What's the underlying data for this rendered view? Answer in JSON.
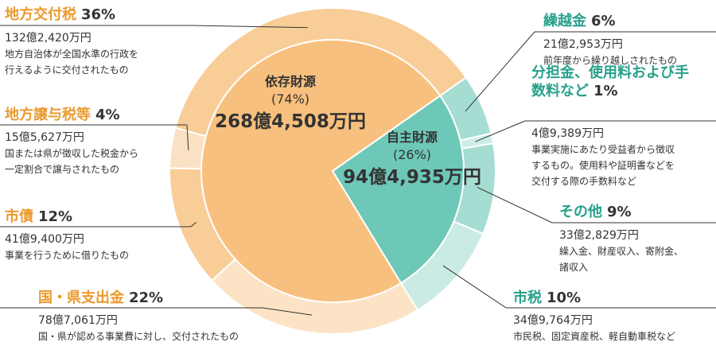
{
  "chart_data": {
    "type": "sunburst",
    "inner": {
      "categories": [
        "自主財源",
        "依存財源"
      ],
      "values": [
        26,
        74
      ],
      "value_labels": [
        "(26%)",
        "(74%)"
      ],
      "amounts": [
        "94億4,935万円",
        "268億4,508万円"
      ],
      "colors": [
        "#6ec8b7",
        "#f8c07e"
      ]
    },
    "outer": {
      "categories": [
        "繰越金",
        "分担金、使用料および手数料など",
        "その他",
        "市税",
        "国・県支出金",
        "市債",
        "地方譲与税等",
        "地方交付税"
      ],
      "values": [
        6,
        1,
        9,
        10,
        22,
        12,
        4,
        36
      ],
      "value_labels": [
        "6%",
        "1%",
        "9%",
        "10%",
        "22%",
        "12%",
        "4%",
        "36%"
      ],
      "amounts": [
        "21億2,953万円",
        "4億9,389万円",
        "33億2,829万円",
        "34億9,764万円",
        "78億7,061万円",
        "41億9,400万円",
        "15億5,627万円",
        "132億2,420万円"
      ],
      "descriptions": [
        [
          "前年度から繰り越しされたもの"
        ],
        [
          "事業実施にあたり受益者から徴収",
          "するもの。使用料や証明書などを",
          "交付する際の手数料など"
        ],
        [
          "繰入金、財産収入、寄附金、",
          "諸収入"
        ],
        [
          "市民税、固定資産税、軽自動車税など"
        ],
        [
          "国・県が認める事業費に対し、交付されたもの"
        ],
        [
          "事業を行うために借りたもの"
        ],
        [
          "国または県が徴収した税金から",
          "一定割合で譲与されたもの"
        ],
        [
          "地方自治体が全国水準の行政を",
          "行えるように交付されたもの"
        ]
      ],
      "colors": [
        "#a6ddd3",
        "#cdeee8",
        "#a6ddd3",
        "#c9ebe4",
        "#fde3c6",
        "#f9cd98",
        "#fbe1c3",
        "#f9cd98"
      ]
    }
  }
}
